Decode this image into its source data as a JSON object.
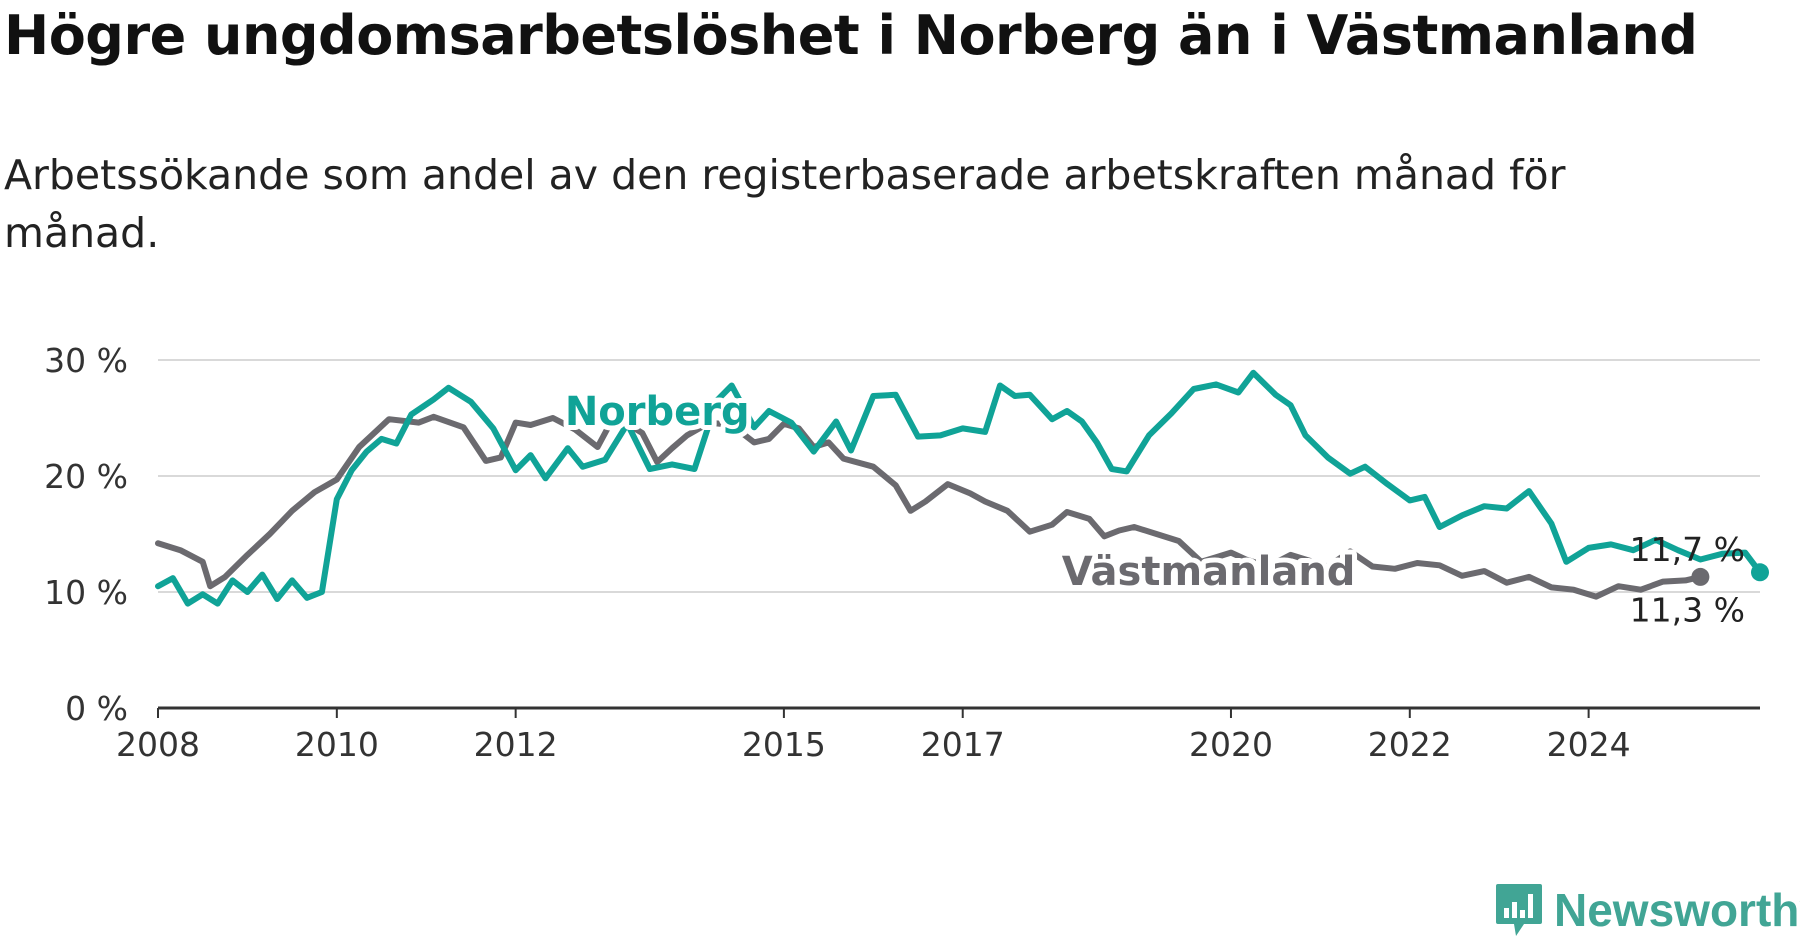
{
  "title": "Högre ungdomsarbetslöshet i Norberg än i Västmanland",
  "subtitle": "Arbetssökande som andel av den registerbaserade arbetskraften månad för månad.",
  "brand": {
    "name": "Newsworthy",
    "color": "#41a595"
  },
  "chart_data": {
    "type": "line",
    "x_ticks": [
      "2008",
      "2010",
      "2012",
      "2015",
      "2017",
      "2020",
      "2022",
      "2024"
    ],
    "y_ticks": [
      "0 %",
      "10 %",
      "20 %",
      "30 %"
    ],
    "ylim": [
      0,
      30
    ],
    "xlim": [
      "2008-01",
      "2025-12"
    ],
    "grid": true,
    "series": [
      {
        "name": "Västmanland",
        "color": "#6b6a6f",
        "end_label": "11,3 %",
        "points": [
          [
            "2008-01",
            14.2
          ],
          [
            "2008-04",
            13.6
          ],
          [
            "2008-07",
            12.6
          ],
          [
            "2008-08",
            10.5
          ],
          [
            "2008-10",
            11.3
          ],
          [
            "2009-01",
            13.2
          ],
          [
            "2009-04",
            15.0
          ],
          [
            "2009-07",
            17.0
          ],
          [
            "2009-10",
            18.6
          ],
          [
            "2010-01",
            19.7
          ],
          [
            "2010-04",
            22.5
          ],
          [
            "2010-08",
            24.9
          ],
          [
            "2010-12",
            24.6
          ],
          [
            "2011-02",
            25.1
          ],
          [
            "2011-06",
            24.2
          ],
          [
            "2011-09",
            21.3
          ],
          [
            "2011-11",
            21.6
          ],
          [
            "2012-01",
            24.6
          ],
          [
            "2012-03",
            24.4
          ],
          [
            "2012-06",
            25.0
          ],
          [
            "2012-09",
            24.0
          ],
          [
            "2012-12",
            22.5
          ],
          [
            "2013-02",
            24.9
          ],
          [
            "2013-04",
            24.5
          ],
          [
            "2013-06",
            23.7
          ],
          [
            "2013-08",
            21.2
          ],
          [
            "2013-10",
            22.4
          ],
          [
            "2013-12",
            23.5
          ],
          [
            "2014-03",
            24.6
          ],
          [
            "2014-06",
            24.4
          ],
          [
            "2014-09",
            22.9
          ],
          [
            "2014-11",
            23.2
          ],
          [
            "2015-01",
            24.5
          ],
          [
            "2015-03",
            24.1
          ],
          [
            "2015-05",
            22.5
          ],
          [
            "2015-07",
            22.9
          ],
          [
            "2015-09",
            21.5
          ],
          [
            "2016-01",
            20.8
          ],
          [
            "2016-04",
            19.2
          ],
          [
            "2016-06",
            17.0
          ],
          [
            "2016-08",
            17.8
          ],
          [
            "2016-11",
            19.3
          ],
          [
            "2017-02",
            18.5
          ],
          [
            "2017-04",
            17.8
          ],
          [
            "2017-07",
            17.0
          ],
          [
            "2017-10",
            15.2
          ],
          [
            "2018-01",
            15.8
          ],
          [
            "2018-03",
            16.9
          ],
          [
            "2018-06",
            16.3
          ],
          [
            "2018-08",
            14.8
          ],
          [
            "2018-10",
            15.3
          ],
          [
            "2018-12",
            15.6
          ],
          [
            "2019-03",
            15.0
          ],
          [
            "2019-06",
            14.4
          ],
          [
            "2019-09",
            12.6
          ],
          [
            "2019-11",
            13.0
          ],
          [
            "2020-01",
            13.4
          ],
          [
            "2020-03",
            12.8
          ],
          [
            "2020-06",
            12.2
          ],
          [
            "2020-09",
            13.2
          ],
          [
            "2020-12",
            12.6
          ],
          [
            "2021-02",
            12.2
          ],
          [
            "2021-05",
            13.5
          ],
          [
            "2021-08",
            12.2
          ],
          [
            "2021-11",
            12.0
          ],
          [
            "2022-02",
            12.5
          ],
          [
            "2022-05",
            12.3
          ],
          [
            "2022-08",
            11.4
          ],
          [
            "2022-11",
            11.8
          ],
          [
            "2023-02",
            10.8
          ],
          [
            "2023-05",
            11.3
          ],
          [
            "2023-08",
            10.4
          ],
          [
            "2023-11",
            10.2
          ],
          [
            "2024-02",
            9.6
          ],
          [
            "2024-05",
            10.5
          ],
          [
            "2024-08",
            10.2
          ],
          [
            "2024-11",
            10.9
          ],
          [
            "2025-02",
            11.0
          ],
          [
            "2025-04",
            11.3
          ]
        ]
      },
      {
        "name": "Norberg",
        "color": "#10a397",
        "end_label": "11,7 %",
        "points": [
          [
            "2008-01",
            10.5
          ],
          [
            "2008-03",
            11.2
          ],
          [
            "2008-05",
            9.0
          ],
          [
            "2008-07",
            9.8
          ],
          [
            "2008-09",
            9.0
          ],
          [
            "2008-11",
            11.0
          ],
          [
            "2009-01",
            10.0
          ],
          [
            "2009-03",
            11.5
          ],
          [
            "2009-05",
            9.4
          ],
          [
            "2009-07",
            11.0
          ],
          [
            "2009-09",
            9.5
          ],
          [
            "2009-11",
            10.0
          ],
          [
            "2010-01",
            18.0
          ],
          [
            "2010-03",
            20.5
          ],
          [
            "2010-05",
            22.1
          ],
          [
            "2010-07",
            23.2
          ],
          [
            "2010-09",
            22.8
          ],
          [
            "2010-11",
            25.3
          ],
          [
            "2011-02",
            26.6
          ],
          [
            "2011-04",
            27.6
          ],
          [
            "2011-07",
            26.4
          ],
          [
            "2011-10",
            24.1
          ],
          [
            "2012-01",
            20.5
          ],
          [
            "2012-03",
            21.8
          ],
          [
            "2012-05",
            19.8
          ],
          [
            "2012-08",
            22.4
          ],
          [
            "2012-10",
            20.8
          ],
          [
            "2013-01",
            21.4
          ],
          [
            "2013-04",
            24.5
          ],
          [
            "2013-07",
            20.6
          ],
          [
            "2013-10",
            21.0
          ],
          [
            "2014-01",
            20.6
          ],
          [
            "2014-04",
            26.5
          ],
          [
            "2014-06",
            27.8
          ],
          [
            "2014-09",
            24.2
          ],
          [
            "2014-11",
            25.6
          ],
          [
            "2015-02",
            24.6
          ],
          [
            "2015-05",
            22.1
          ],
          [
            "2015-08",
            24.7
          ],
          [
            "2015-10",
            22.2
          ],
          [
            "2016-01",
            26.9
          ],
          [
            "2016-04",
            27.0
          ],
          [
            "2016-07",
            23.4
          ],
          [
            "2016-10",
            23.5
          ],
          [
            "2017-01",
            24.1
          ],
          [
            "2017-04",
            23.8
          ],
          [
            "2017-06",
            27.8
          ],
          [
            "2017-08",
            26.9
          ],
          [
            "2017-10",
            27.0
          ],
          [
            "2018-01",
            24.9
          ],
          [
            "2018-03",
            25.6
          ],
          [
            "2018-05",
            24.7
          ],
          [
            "2018-07",
            22.9
          ],
          [
            "2018-09",
            20.6
          ],
          [
            "2018-11",
            20.4
          ],
          [
            "2019-02",
            23.5
          ],
          [
            "2019-05",
            25.4
          ],
          [
            "2019-08",
            27.5
          ],
          [
            "2019-11",
            27.9
          ],
          [
            "2020-02",
            27.2
          ],
          [
            "2020-04",
            28.9
          ],
          [
            "2020-07",
            27.0
          ],
          [
            "2020-09",
            26.1
          ],
          [
            "2020-11",
            23.5
          ],
          [
            "2021-02",
            21.6
          ],
          [
            "2021-05",
            20.2
          ],
          [
            "2021-07",
            20.8
          ],
          [
            "2021-10",
            19.3
          ],
          [
            "2022-01",
            17.9
          ],
          [
            "2022-03",
            18.2
          ],
          [
            "2022-05",
            15.6
          ],
          [
            "2022-08",
            16.6
          ],
          [
            "2022-11",
            17.4
          ],
          [
            "2023-02",
            17.2
          ],
          [
            "2023-05",
            18.7
          ],
          [
            "2023-08",
            15.9
          ],
          [
            "2023-10",
            12.6
          ],
          [
            "2024-01",
            13.8
          ],
          [
            "2024-04",
            14.1
          ],
          [
            "2024-07",
            13.6
          ],
          [
            "2024-10",
            14.5
          ],
          [
            "2025-01",
            13.6
          ],
          [
            "2025-04",
            12.8
          ],
          [
            "2025-07",
            13.3
          ],
          [
            "2025-10",
            13.4
          ],
          [
            "2025-12",
            11.7
          ]
        ]
      }
    ]
  }
}
